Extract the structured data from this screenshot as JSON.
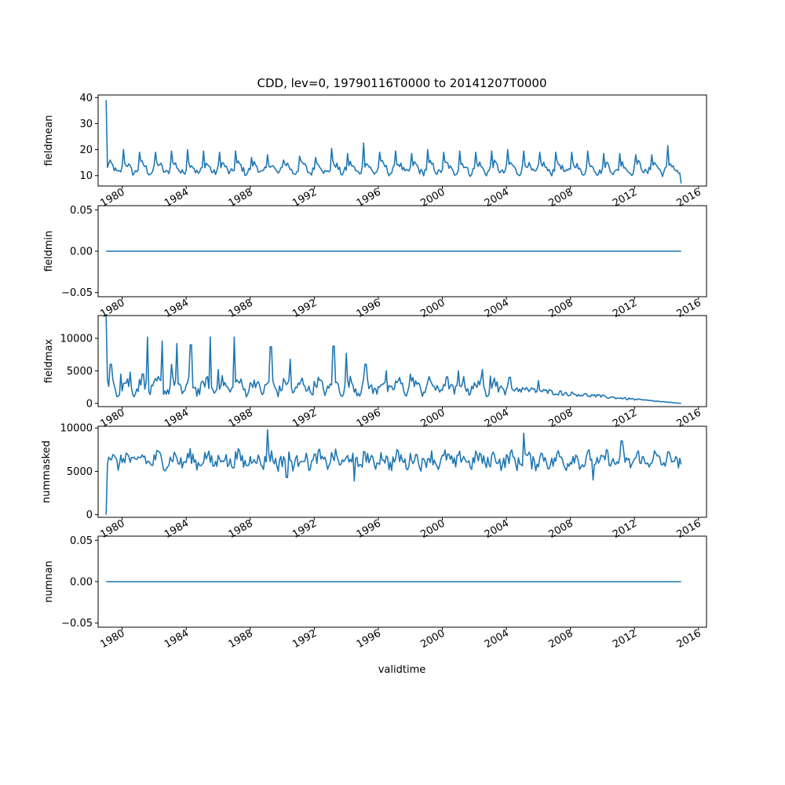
{
  "chart_data": {
    "title": "CDD, lev=0, 19790116T0000 to 20141207T0000",
    "xlabel": "validtime",
    "type": "line",
    "x_start": "1979-01",
    "x_end": "2014-12",
    "x_step": "monthly",
    "xlim": [
      1978.5,
      2016.5
    ],
    "xticks": [
      "1980",
      "1984",
      "1988",
      "1992",
      "1996",
      "2000",
      "2004",
      "2008",
      "2012",
      "2016"
    ],
    "panels": [
      {
        "ylabel": "fieldmean",
        "ylim": [
          6,
          41
        ],
        "yticks": [
          {
            "value": 10,
            "label": "10"
          },
          {
            "value": 20,
            "label": "20"
          },
          {
            "value": 30,
            "label": "30"
          },
          {
            "value": 40,
            "label": "40"
          }
        ],
        "series": {
          "base": 12.8,
          "amp": 1.8,
          "noise": 1.4,
          "first": 39,
          "last": 7,
          "peaks": [
            [
              1980.1,
              20
            ],
            [
              1981.1,
              19
            ],
            [
              1982.1,
              19
            ],
            [
              1983.1,
              19.5
            ],
            [
              1984.1,
              20
            ],
            [
              1985.1,
              19.5
            ],
            [
              1986.1,
              19
            ],
            [
              1987.1,
              19.5
            ],
            [
              1988.1,
              17
            ],
            [
              1989.1,
              18
            ],
            [
              1990.1,
              16
            ],
            [
              1991.1,
              17.5
            ],
            [
              1992.1,
              17
            ],
            [
              1993.1,
              20.5
            ],
            [
              1994.1,
              18.5
            ],
            [
              1995.1,
              22.5
            ],
            [
              1996.1,
              19
            ],
            [
              1997.1,
              19.5
            ],
            [
              1998.1,
              18.5
            ],
            [
              1999.1,
              20
            ],
            [
              2000.1,
              19
            ],
            [
              2001.1,
              19.5
            ],
            [
              2002.1,
              19
            ],
            [
              2003.1,
              19.5
            ],
            [
              2004.1,
              20
            ],
            [
              2005.1,
              19.5
            ],
            [
              2006.1,
              19
            ],
            [
              2007.1,
              19
            ],
            [
              2008.1,
              19
            ],
            [
              2009.1,
              19.5
            ],
            [
              2010.1,
              18.5
            ],
            [
              2011.1,
              18.5
            ],
            [
              2012.1,
              18
            ],
            [
              2013.1,
              18
            ],
            [
              2014.1,
              21.5
            ]
          ]
        }
      },
      {
        "ylabel": "fieldmin",
        "ylim": [
          -0.055,
          0.055
        ],
        "yticks": [
          {
            "value": 0.05,
            "label": "0.05"
          },
          {
            "value": 0.0,
            "label": "0.00"
          },
          {
            "value": -0.05,
            "label": "−0.05"
          }
        ],
        "series": {
          "base": 0,
          "amp": 0,
          "noise": 0,
          "first": 0,
          "last": 0,
          "peaks": []
        }
      },
      {
        "ylabel": "fieldmax",
        "ylim": [
          -500,
          13500
        ],
        "yticks": [
          {
            "value": 0,
            "label": "0"
          },
          {
            "value": 5000,
            "label": "5000"
          },
          {
            "value": 10000,
            "label": "10000"
          }
        ],
        "series": {
          "base": 2600,
          "amp": 800,
          "noise": 900,
          "first": 13500,
          "last": 0,
          "decay_start": 2004,
          "decay_end": 2014.9,
          "peaks": [
            [
              1979.3,
              6000
            ],
            [
              1979.9,
              4500
            ],
            [
              1980.5,
              4800
            ],
            [
              1981.3,
              4500
            ],
            [
              1981.6,
              10200
            ],
            [
              1982.5,
              9600
            ],
            [
              1983.1,
              6000
            ],
            [
              1983.4,
              9200
            ],
            [
              1984.3,
              9000
            ],
            [
              1985.5,
              10200
            ],
            [
              1986.0,
              5200
            ],
            [
              1987.0,
              10200
            ],
            [
              1989.3,
              8700
            ],
            [
              1990.5,
              6800
            ],
            [
              1993.2,
              8800
            ],
            [
              1994.0,
              7700
            ],
            [
              1995.2,
              6000
            ],
            [
              1996.5,
              5000
            ],
            [
              1998.0,
              4500
            ],
            [
              2001.0,
              5000
            ],
            [
              2002.5,
              5200
            ],
            [
              2003.0,
              4200
            ],
            [
              2004.2,
              4000
            ],
            [
              2006.0,
              3500
            ]
          ]
        }
      },
      {
        "ylabel": "nummasked",
        "ylim": [
          -300,
          10200
        ],
        "yticks": [
          {
            "value": 0,
            "label": "0"
          },
          {
            "value": 5000,
            "label": "5000"
          },
          {
            "value": 10000,
            "label": "10000"
          }
        ],
        "series": {
          "base": 6300,
          "amp": 500,
          "noise": 850,
          "first": 0,
          "last": 5800,
          "peaks": [
            [
              1989.1,
              9800
            ],
            [
              2005.1,
              9400
            ],
            [
              2011.2,
              8500
            ],
            [
              1990.3,
              4300
            ],
            [
              1994.5,
              3900
            ],
            [
              2009.4,
              4000
            ]
          ]
        }
      },
      {
        "ylabel": "numnan",
        "ylim": [
          -0.055,
          0.055
        ],
        "yticks": [
          {
            "value": 0.05,
            "label": "0.05"
          },
          {
            "value": 0.0,
            "label": "0.00"
          },
          {
            "value": -0.05,
            "label": "−0.05"
          }
        ],
        "series": {
          "base": 0,
          "amp": 0,
          "noise": 0,
          "first": 0,
          "last": 0,
          "peaks": []
        }
      }
    ]
  }
}
